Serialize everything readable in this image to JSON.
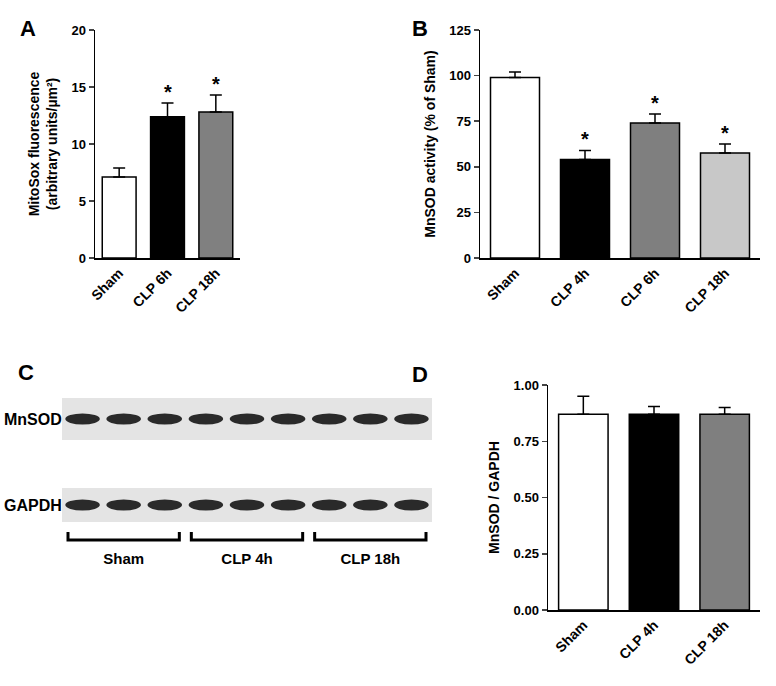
{
  "chart_data": [
    {
      "panel": "A",
      "type": "bar",
      "categories": [
        "Sham",
        "CLP 6h",
        "CLP 18h"
      ],
      "values": [
        7.1,
        12.4,
        12.8
      ],
      "errors": [
        0.8,
        1.2,
        1.5
      ],
      "colors": [
        "#ffffff",
        "#000000",
        "#808080"
      ],
      "y_label": "MitoSox fluorescence\n(arbitrary units/µm²)",
      "ylim": [
        0,
        20
      ],
      "yticks": [
        0,
        5,
        10,
        15,
        20
      ],
      "grid": false,
      "annotations": [
        {
          "category": "CLP 6h",
          "text": "*"
        },
        {
          "category": "CLP 18h",
          "text": "*"
        }
      ]
    },
    {
      "panel": "B",
      "type": "bar",
      "categories": [
        "Sham",
        "CLP 4h",
        "CLP 6h",
        "CLP 18h"
      ],
      "values": [
        99,
        54,
        74,
        57.5
      ],
      "errors": [
        3,
        5,
        5,
        5
      ],
      "colors": [
        "#ffffff",
        "#000000",
        "#7f7f7f",
        "#c8c8c8"
      ],
      "y_label": "MnSOD activity (% of Sham)",
      "ylim": [
        0,
        125
      ],
      "yticks": [
        0,
        25,
        50,
        75,
        100,
        125
      ],
      "grid": false,
      "annotations": [
        {
          "category": "CLP 4h",
          "text": "*"
        },
        {
          "category": "CLP 6h",
          "text": "*"
        },
        {
          "category": "CLP 18h",
          "text": "*"
        }
      ]
    },
    {
      "panel": "D",
      "type": "bar",
      "categories": [
        "Sham",
        "CLP 4h",
        "CLP 18h"
      ],
      "values": [
        0.87,
        0.87,
        0.87
      ],
      "errors": [
        0.08,
        0.035,
        0.03
      ],
      "colors": [
        "#ffffff",
        "#000000",
        "#7f7f7f"
      ],
      "y_label": "MnSOD / GAPDH",
      "ylim": [
        0,
        1
      ],
      "yticks": [
        {
          "value": 0,
          "label": "0.00"
        },
        {
          "value": 0.25,
          "label": "0.25"
        },
        {
          "value": 0.5,
          "label": "0.50"
        },
        {
          "value": 0.75,
          "label": "0.75"
        },
        {
          "value": 1,
          "label": "1.00"
        }
      ],
      "grid": false
    }
  ],
  "blot": {
    "panel": "C",
    "rows": [
      "MnSOD",
      "GAPDH"
    ],
    "groups": [
      "Sham",
      "CLP 4h",
      "CLP 18h"
    ],
    "lanes_per_group": 3
  }
}
